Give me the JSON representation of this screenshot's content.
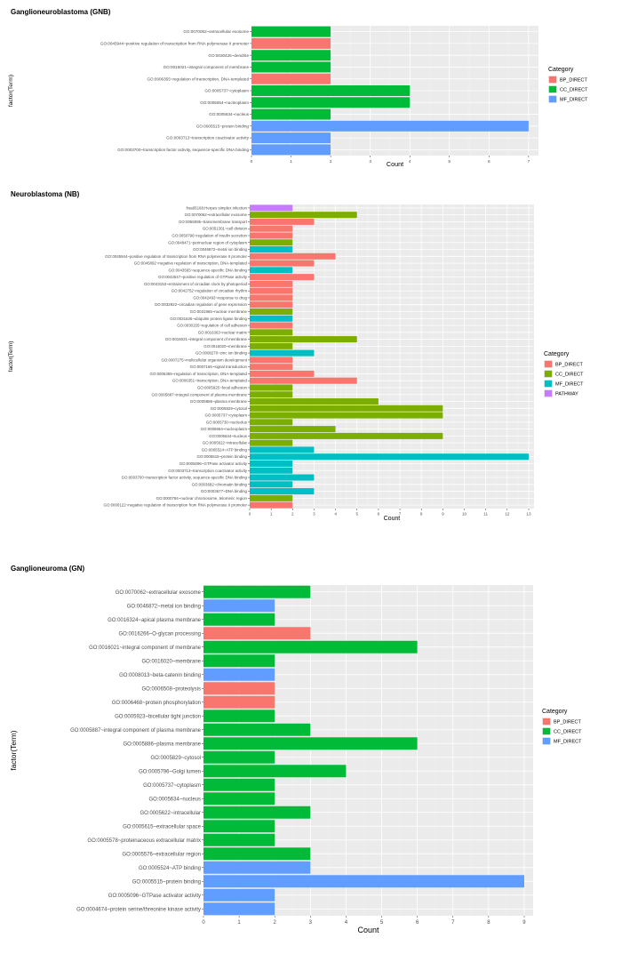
{
  "chart_data": [
    {
      "type": "bar",
      "orientation": "horizontal",
      "title": "Ganglioneuroblastoma (GNB)",
      "xlabel": "Count",
      "ylabel": "factor(Term)",
      "xlim": [
        0,
        7
      ],
      "xticks": [
        0,
        1,
        2,
        3,
        4,
        5,
        6,
        7
      ],
      "grid": true,
      "legend_title": "Category",
      "legend_position": "right",
      "legend": [
        {
          "name": "BP_DIRECT",
          "color": "#F8766D"
        },
        {
          "name": "CC_DIRECT",
          "color": "#00BA38"
        },
        {
          "name": "MF_DIRECT",
          "color": "#619CFF"
        }
      ],
      "categories": [
        "GO:0070062~extracellular exosome",
        "GO:0045944~positive regulation of transcription from RNA polymerase II promoter",
        "GO:0030425~dendrite",
        "GO:0016021~integral component of membrane",
        "GO:0006355~regulation of transcription, DNA-templated",
        "GO:0005737~cytoplasm",
        "GO:0005654~nucleoplasm",
        "GO:0005634~nucleus",
        "GO:0005515~protein binding",
        "GO:0003713~transcription coactivator activity",
        "GO:0003700~transcription factor activity, sequence-specific DNA binding"
      ],
      "values": [
        2,
        2,
        2,
        2,
        2,
        4,
        4,
        2,
        7,
        2,
        2
      ],
      "category_groups": [
        "CC_DIRECT",
        "BP_DIRECT",
        "CC_DIRECT",
        "CC_DIRECT",
        "BP_DIRECT",
        "CC_DIRECT",
        "CC_DIRECT",
        "CC_DIRECT",
        "MF_DIRECT",
        "MF_DIRECT",
        "MF_DIRECT"
      ]
    },
    {
      "type": "bar",
      "orientation": "horizontal",
      "title": "Neuroblastoma (NB)",
      "xlabel": "Count",
      "ylabel": "factor(Term)",
      "xlim": [
        0,
        13
      ],
      "xticks": [
        0,
        1,
        2,
        3,
        4,
        5,
        6,
        7,
        8,
        9,
        10,
        11,
        12,
        13
      ],
      "grid": true,
      "legend_title": "Category",
      "legend_position": "right",
      "legend": [
        {
          "name": "BP_DIRECT",
          "color": "#F8766D"
        },
        {
          "name": "CC_DIRECT",
          "color": "#7CAE00"
        },
        {
          "name": "MF_DIRECT",
          "color": "#00BFC4"
        },
        {
          "name": "PATHWAY",
          "color": "#C77CFF"
        }
      ],
      "categories": [
        "hsa05168:Herpes simplex infection",
        "GO:0070062~extracellular exosome",
        "GO:0055085~transmembrane transport",
        "GO:0051301~cell division",
        "GO:0050796~regulation of insulin secretion",
        "GO:0048471~perinuclear region of cytoplasm",
        "GO:0046872~metal ion binding",
        "GO:0045944~positive regulation of transcription from RNA polymerase II promoter",
        "GO:0045892~negative regulation of transcription, DNA-templated",
        "GO:0043565~sequence-specific DNA binding",
        "GO:0043547~positive regulation of GTPase activity",
        "GO:0043153~entrainment of circadian clock by photoperiod",
        "GO:0042752~regulation of circadian rhythm",
        "GO:0042493~response to drug",
        "GO:0032922~circadian regulation of gene expression",
        "GO:0031965~nuclear membrane",
        "GO:0031625~ubiquitin protein ligase binding",
        "GO:0030155~regulation of cell adhesion",
        "GO:0016363~nuclear matrix",
        "GO:0016021~integral component of membrane",
        "GO:0016020~membrane",
        "GO:0008270~zinc ion binding",
        "GO:0007275~multicellular organism development",
        "GO:0007165~signal transduction",
        "GO:0006355~regulation of transcription, DNA-templated",
        "GO:0006351~transcription, DNA-templated",
        "GO:0005925~focal adhesion",
        "GO:0005887~integral component of plasma membrane",
        "GO:0005886~plasma membrane",
        "GO:0005829~cytosol",
        "GO:0005737~cytoplasm",
        "GO:0005730~nucleolus",
        "GO:0005654~nucleoplasm",
        "GO:0005634~nucleus",
        "GO:0005622~intracellular",
        "GO:0005524~ATP binding",
        "GO:0005515~protein binding",
        "GO:0005096~GTPase activator activity",
        "GO:0003713~transcription coactivator activity",
        "GO:0003700~transcription factor activity, sequence-specific DNA binding",
        "GO:0003682~chromatin binding",
        "GO:0003677~DNA binding",
        "GO:0000784~nuclear chromosome, telomeric region",
        "GO:0000122~negative regulation of transcription from RNA polymerase II promoter"
      ],
      "values": [
        2,
        5,
        3,
        2,
        2,
        2,
        2,
        4,
        3,
        2,
        3,
        2,
        2,
        2,
        2,
        2,
        2,
        2,
        2,
        5,
        2,
        3,
        2,
        2,
        3,
        5,
        2,
        2,
        6,
        9,
        9,
        2,
        4,
        9,
        2,
        3,
        13,
        2,
        2,
        3,
        2,
        3,
        2,
        2
      ],
      "category_groups": [
        "PATHWAY",
        "CC_DIRECT",
        "BP_DIRECT",
        "BP_DIRECT",
        "BP_DIRECT",
        "CC_DIRECT",
        "MF_DIRECT",
        "BP_DIRECT",
        "BP_DIRECT",
        "MF_DIRECT",
        "BP_DIRECT",
        "BP_DIRECT",
        "BP_DIRECT",
        "BP_DIRECT",
        "BP_DIRECT",
        "CC_DIRECT",
        "MF_DIRECT",
        "BP_DIRECT",
        "CC_DIRECT",
        "CC_DIRECT",
        "CC_DIRECT",
        "MF_DIRECT",
        "BP_DIRECT",
        "BP_DIRECT",
        "BP_DIRECT",
        "BP_DIRECT",
        "CC_DIRECT",
        "CC_DIRECT",
        "CC_DIRECT",
        "CC_DIRECT",
        "CC_DIRECT",
        "CC_DIRECT",
        "CC_DIRECT",
        "CC_DIRECT",
        "CC_DIRECT",
        "MF_DIRECT",
        "MF_DIRECT",
        "MF_DIRECT",
        "MF_DIRECT",
        "MF_DIRECT",
        "MF_DIRECT",
        "MF_DIRECT",
        "CC_DIRECT",
        "BP_DIRECT"
      ]
    },
    {
      "type": "bar",
      "orientation": "horizontal",
      "title": "Ganglioneuroma (GN)",
      "xlabel": "Count",
      "ylabel": "factor(Term)",
      "xlim": [
        0,
        9
      ],
      "xticks": [
        0,
        1,
        2,
        3,
        4,
        5,
        6,
        7,
        8,
        9
      ],
      "grid": true,
      "legend_title": "Category",
      "legend_position": "right",
      "legend": [
        {
          "name": "BP_DIRECT",
          "color": "#F8766D"
        },
        {
          "name": "CC_DIRECT",
          "color": "#00BA38"
        },
        {
          "name": "MF_DIRECT",
          "color": "#619CFF"
        }
      ],
      "categories": [
        "GO:0070062~extracellular exosome",
        "GO:0046872~metal ion binding",
        "GO:0016324~apical plasma membrane",
        "GO:0016266~O-glycan processing",
        "GO:0016021~integral component of membrane",
        "GO:0016020~membrane",
        "GO:0008013~beta-catenin binding",
        "GO:0006508~proteolysis",
        "GO:0006468~protein phosphorylation",
        "GO:0005923~bicellular tight junction",
        "GO:0005887~integral component of plasma membrane",
        "GO:0005886~plasma membrane",
        "GO:0005829~cytosol",
        "GO:0005796~Golgi lumen",
        "GO:0005737~cytoplasm",
        "GO:0005634~nucleus",
        "GO:0005622~intracellular",
        "GO:0005615~extracellular space",
        "GO:0005578~proteinaceous extracellular matrix",
        "GO:0005576~extracellular region",
        "GO:0005524~ATP binding",
        "GO:0005515~protein binding",
        "GO:0005096~GTPase activator activity",
        "GO:0004674~protein serine/threonine kinase activity"
      ],
      "values": [
        3,
        2,
        2,
        3,
        6,
        2,
        2,
        2,
        2,
        2,
        3,
        6,
        2,
        4,
        2,
        2,
        3,
        2,
        2,
        3,
        3,
        9,
        2,
        2
      ],
      "category_groups": [
        "CC_DIRECT",
        "MF_DIRECT",
        "CC_DIRECT",
        "BP_DIRECT",
        "CC_DIRECT",
        "CC_DIRECT",
        "MF_DIRECT",
        "BP_DIRECT",
        "BP_DIRECT",
        "CC_DIRECT",
        "CC_DIRECT",
        "CC_DIRECT",
        "CC_DIRECT",
        "CC_DIRECT",
        "CC_DIRECT",
        "CC_DIRECT",
        "CC_DIRECT",
        "CC_DIRECT",
        "CC_DIRECT",
        "CC_DIRECT",
        "MF_DIRECT",
        "MF_DIRECT",
        "MF_DIRECT",
        "MF_DIRECT"
      ]
    }
  ]
}
